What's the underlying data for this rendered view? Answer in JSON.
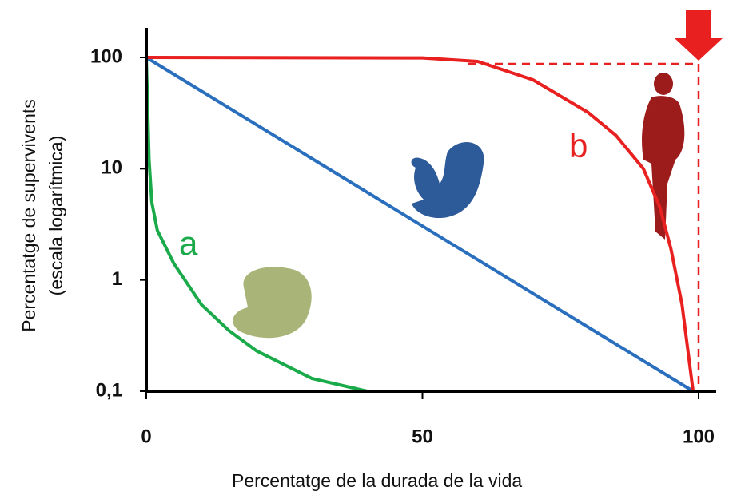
{
  "chart_data": {
    "type": "line",
    "ylabel": [
      "Percentatge de supervivents",
      "(escala logarítmica)"
    ],
    "xlabel": "Percentatge de la durada de la vida",
    "xlim": [
      0,
      100
    ],
    "xticks": [
      0,
      50,
      100
    ],
    "ylim": [
      0.1,
      100
    ],
    "log_y": true,
    "yticks": [
      {
        "value": 0.1,
        "label": "0,1"
      },
      1,
      10,
      100
    ],
    "series": [
      {
        "name": "a",
        "color": "#1aaa4a",
        "x": [
          0,
          0.5,
          1,
          2,
          5,
          10,
          15,
          20,
          30,
          40,
          45
        ],
        "values": [
          100,
          12,
          5,
          2.8,
          1.4,
          0.6,
          0.35,
          0.23,
          0.13,
          0.1,
          0.1
        ]
      },
      {
        "color": "#2a6fbd",
        "x": [
          0,
          99
        ],
        "values": [
          100,
          0.1
        ]
      },
      {
        "name": "b",
        "color": "#e82020",
        "x": [
          0,
          50,
          60,
          70,
          80,
          85,
          90,
          93,
          95,
          97,
          99
        ],
        "values": [
          100,
          99,
          92,
          63,
          32,
          20,
          10,
          4.5,
          1.9,
          0.6,
          0.1
        ]
      }
    ]
  }
}
